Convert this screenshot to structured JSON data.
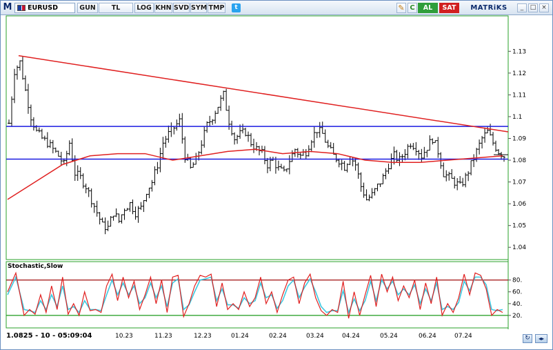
{
  "toolbar": {
    "logo": "M",
    "symbol": "EURUSD",
    "buttons": [
      {
        "label": "GUN",
        "name": "period-gun-button"
      },
      {
        "label": "TL",
        "name": "currency-tl-button"
      },
      {
        "label": "LOG",
        "name": "log-scale-button"
      },
      {
        "label": "KHN",
        "name": "khn-button"
      },
      {
        "label": "SVD",
        "name": "svd-button"
      },
      {
        "label": "SYM",
        "name": "sym-button"
      },
      {
        "label": "TMP",
        "name": "tmp-button"
      }
    ],
    "refresh_label": "C",
    "buy_label": "AL",
    "sell_label": "SAT",
    "brand": "MATRiKS",
    "twitter_icon": "twitter-icon",
    "pencil_icon": "pencil-icon",
    "window_buttons": [
      "minimize-icon",
      "restore-icon",
      "close-icon"
    ]
  },
  "chart_data": {
    "type": "candlestick",
    "symbol": "EURUSD",
    "price_panel": {
      "ylim": [
        1.035,
        1.145
      ],
      "yticks": [
        1.04,
        1.05,
        1.06,
        1.07,
        1.08,
        1.09,
        1.1,
        1.11,
        1.12,
        1.13
      ],
      "ytick_labels": [
        "1.04",
        "1.05",
        "1.06",
        "1.07",
        "1.08",
        "1.09",
        "1.1",
        "1.11",
        "1.12",
        "1.13"
      ],
      "close_path": [
        [
          0,
          1.097
        ],
        [
          2,
          1.121
        ],
        [
          4,
          1.125
        ],
        [
          6,
          1.112
        ],
        [
          8,
          1.1
        ],
        [
          10,
          1.093
        ],
        [
          12,
          1.09
        ],
        [
          14,
          1.088
        ],
        [
          16,
          1.085
        ],
        [
          18,
          1.082
        ],
        [
          20,
          1.078
        ],
        [
          22,
          1.088
        ],
        [
          24,
          1.074
        ],
        [
          26,
          1.072
        ],
        [
          28,
          1.068
        ],
        [
          30,
          1.062
        ],
        [
          32,
          1.056
        ],
        [
          34,
          1.05
        ],
        [
          36,
          1.049
        ],
        [
          38,
          1.056
        ],
        [
          40,
          1.052
        ],
        [
          42,
          1.058
        ],
        [
          44,
          1.06
        ],
        [
          46,
          1.056
        ],
        [
          48,
          1.058
        ],
        [
          50,
          1.066
        ],
        [
          52,
          1.07
        ],
        [
          54,
          1.078
        ],
        [
          56,
          1.088
        ],
        [
          58,
          1.092
        ],
        [
          60,
          1.095
        ],
        [
          62,
          1.098
        ],
        [
          64,
          1.082
        ],
        [
          66,
          1.076
        ],
        [
          68,
          1.08
        ],
        [
          70,
          1.088
        ],
        [
          72,
          1.096
        ],
        [
          74,
          1.1
        ],
        [
          76,
          1.105
        ],
        [
          78,
          1.11
        ],
        [
          80,
          1.098
        ],
        [
          82,
          1.09
        ],
        [
          84,
          1.092
        ],
        [
          86,
          1.093
        ],
        [
          88,
          1.088
        ],
        [
          90,
          1.085
        ],
        [
          92,
          1.083
        ],
        [
          94,
          1.078
        ],
        [
          96,
          1.08
        ],
        [
          98,
          1.076
        ],
        [
          100,
          1.074
        ],
        [
          102,
          1.08
        ],
        [
          104,
          1.085
        ],
        [
          106,
          1.082
        ],
        [
          108,
          1.084
        ],
        [
          110,
          1.09
        ],
        [
          112,
          1.094
        ],
        [
          114,
          1.092
        ],
        [
          116,
          1.086
        ],
        [
          118,
          1.082
        ],
        [
          120,
          1.08
        ],
        [
          122,
          1.077
        ],
        [
          124,
          1.082
        ],
        [
          126,
          1.078
        ],
        [
          128,
          1.068
        ],
        [
          130,
          1.062
        ],
        [
          132,
          1.064
        ],
        [
          134,
          1.068
        ],
        [
          136,
          1.072
        ],
        [
          138,
          1.078
        ],
        [
          140,
          1.082
        ],
        [
          142,
          1.08
        ],
        [
          144,
          1.084
        ],
        [
          146,
          1.088
        ],
        [
          148,
          1.086
        ],
        [
          150,
          1.082
        ],
        [
          152,
          1.086
        ],
        [
          154,
          1.09
        ],
        [
          156,
          1.084
        ],
        [
          158,
          1.074
        ],
        [
          160,
          1.072
        ],
        [
          162,
          1.07
        ],
        [
          164,
          1.068
        ],
        [
          166,
          1.072
        ],
        [
          168,
          1.078
        ],
        [
          170,
          1.084
        ],
        [
          172,
          1.09
        ],
        [
          174,
          1.093
        ],
        [
          176,
          1.088
        ],
        [
          178,
          1.084
        ],
        [
          180,
          1.082
        ]
      ],
      "moving_average": [
        [
          0,
          1.062
        ],
        [
          10,
          1.07
        ],
        [
          20,
          1.078
        ],
        [
          30,
          1.082
        ],
        [
          40,
          1.083
        ],
        [
          50,
          1.083
        ],
        [
          60,
          1.08
        ],
        [
          70,
          1.082
        ],
        [
          80,
          1.084
        ],
        [
          90,
          1.085
        ],
        [
          100,
          1.083
        ],
        [
          110,
          1.084
        ],
        [
          120,
          1.083
        ],
        [
          130,
          1.08
        ],
        [
          140,
          1.079
        ],
        [
          150,
          1.079
        ],
        [
          160,
          1.08
        ],
        [
          170,
          1.081
        ],
        [
          180,
          1.082
        ]
      ],
      "trendline": {
        "start": [
          4,
          1.128
        ],
        "end": [
          190,
          1.093
        ]
      },
      "horizontal_lines": [
        1.0955,
        1.0805
      ],
      "last_price": 1.0825
    },
    "stochastic": {
      "title": "Stochastic,Slow",
      "ylim": [
        0,
        100
      ],
      "yticks": [
        20,
        40,
        60,
        80
      ],
      "ytick_labels": [
        "20.",
        "40.",
        "60.",
        "80."
      ],
      "levels": [
        80,
        20
      ],
      "k": [
        [
          0,
          60
        ],
        [
          3,
          92
        ],
        [
          6,
          20
        ],
        [
          8,
          30
        ],
        [
          10,
          22
        ],
        [
          12,
          55
        ],
        [
          14,
          25
        ],
        [
          16,
          70
        ],
        [
          18,
          30
        ],
        [
          20,
          85
        ],
        [
          22,
          22
        ],
        [
          24,
          40
        ],
        [
          26,
          20
        ],
        [
          28,
          60
        ],
        [
          30,
          28
        ],
        [
          32,
          30
        ],
        [
          34,
          25
        ],
        [
          36,
          70
        ],
        [
          38,
          90
        ],
        [
          40,
          45
        ],
        [
          42,
          85
        ],
        [
          44,
          50
        ],
        [
          46,
          78
        ],
        [
          48,
          30
        ],
        [
          50,
          55
        ],
        [
          52,
          85
        ],
        [
          54,
          40
        ],
        [
          56,
          80
        ],
        [
          58,
          25
        ],
        [
          60,
          85
        ],
        [
          62,
          88
        ],
        [
          64,
          18
        ],
        [
          66,
          40
        ],
        [
          68,
          70
        ],
        [
          70,
          88
        ],
        [
          72,
          85
        ],
        [
          74,
          90
        ],
        [
          76,
          35
        ],
        [
          78,
          75
        ],
        [
          80,
          30
        ],
        [
          82,
          40
        ],
        [
          84,
          30
        ],
        [
          86,
          60
        ],
        [
          88,
          35
        ],
        [
          90,
          50
        ],
        [
          92,
          85
        ],
        [
          94,
          40
        ],
        [
          96,
          60
        ],
        [
          98,
          25
        ],
        [
          100,
          55
        ],
        [
          102,
          80
        ],
        [
          104,
          85
        ],
        [
          106,
          40
        ],
        [
          108,
          75
        ],
        [
          110,
          90
        ],
        [
          112,
          50
        ],
        [
          114,
          28
        ],
        [
          116,
          20
        ],
        [
          118,
          30
        ],
        [
          120,
          25
        ],
        [
          122,
          78
        ],
        [
          124,
          15
        ],
        [
          126,
          60
        ],
        [
          128,
          20
        ],
        [
          130,
          55
        ],
        [
          132,
          88
        ],
        [
          134,
          35
        ],
        [
          136,
          90
        ],
        [
          138,
          60
        ],
        [
          140,
          85
        ],
        [
          142,
          45
        ],
        [
          144,
          70
        ],
        [
          146,
          50
        ],
        [
          148,
          80
        ],
        [
          150,
          30
        ],
        [
          152,
          75
        ],
        [
          154,
          40
        ],
        [
          156,
          85
        ],
        [
          158,
          20
        ],
        [
          160,
          40
        ],
        [
          162,
          25
        ],
        [
          164,
          50
        ],
        [
          166,
          90
        ],
        [
          168,
          55
        ],
        [
          170,
          92
        ],
        [
          172,
          88
        ],
        [
          174,
          65
        ],
        [
          176,
          20
        ],
        [
          178,
          30
        ],
        [
          180,
          25
        ]
      ],
      "d": [
        [
          0,
          55
        ],
        [
          3,
          85
        ],
        [
          6,
          30
        ],
        [
          8,
          28
        ],
        [
          10,
          25
        ],
        [
          12,
          45
        ],
        [
          14,
          30
        ],
        [
          16,
          55
        ],
        [
          18,
          35
        ],
        [
          20,
          70
        ],
        [
          22,
          30
        ],
        [
          24,
          35
        ],
        [
          26,
          25
        ],
        [
          28,
          45
        ],
        [
          30,
          30
        ],
        [
          32,
          30
        ],
        [
          34,
          28
        ],
        [
          36,
          55
        ],
        [
          38,
          80
        ],
        [
          40,
          55
        ],
        [
          42,
          75
        ],
        [
          44,
          55
        ],
        [
          46,
          70
        ],
        [
          48,
          40
        ],
        [
          50,
          50
        ],
        [
          52,
          75
        ],
        [
          54,
          50
        ],
        [
          56,
          70
        ],
        [
          58,
          35
        ],
        [
          60,
          75
        ],
        [
          62,
          82
        ],
        [
          64,
          30
        ],
        [
          66,
          38
        ],
        [
          68,
          60
        ],
        [
          70,
          80
        ],
        [
          72,
          82
        ],
        [
          74,
          85
        ],
        [
          76,
          45
        ],
        [
          78,
          65
        ],
        [
          80,
          38
        ],
        [
          82,
          38
        ],
        [
          84,
          32
        ],
        [
          86,
          50
        ],
        [
          88,
          40
        ],
        [
          90,
          45
        ],
        [
          92,
          75
        ],
        [
          94,
          50
        ],
        [
          96,
          55
        ],
        [
          98,
          32
        ],
        [
          100,
          45
        ],
        [
          102,
          70
        ],
        [
          104,
          80
        ],
        [
          106,
          50
        ],
        [
          108,
          68
        ],
        [
          110,
          82
        ],
        [
          112,
          60
        ],
        [
          114,
          35
        ],
        [
          116,
          25
        ],
        [
          118,
          28
        ],
        [
          120,
          28
        ],
        [
          122,
          62
        ],
        [
          124,
          25
        ],
        [
          126,
          48
        ],
        [
          128,
          28
        ],
        [
          130,
          45
        ],
        [
          132,
          78
        ],
        [
          134,
          45
        ],
        [
          136,
          80
        ],
        [
          138,
          65
        ],
        [
          140,
          78
        ],
        [
          142,
          55
        ],
        [
          144,
          65
        ],
        [
          146,
          55
        ],
        [
          148,
          72
        ],
        [
          150,
          40
        ],
        [
          152,
          65
        ],
        [
          154,
          45
        ],
        [
          156,
          75
        ],
        [
          158,
          30
        ],
        [
          160,
          35
        ],
        [
          162,
          30
        ],
        [
          164,
          42
        ],
        [
          166,
          78
        ],
        [
          168,
          62
        ],
        [
          170,
          85
        ],
        [
          172,
          85
        ],
        [
          174,
          72
        ],
        [
          176,
          30
        ],
        [
          178,
          28
        ],
        [
          180,
          30
        ]
      ]
    },
    "x_labels": [
      "10.23",
      "11.23",
      "12.23",
      "01.24",
      "02.24",
      "03.24",
      "04.24",
      "05.24",
      "06.24",
      "07.24"
    ],
    "colors": {
      "candles": "#000000",
      "trendline": "#e02020",
      "moving_average": "#e02020",
      "horizontal_lines": "#1a1ae0",
      "stoch_k": "#e02020",
      "stoch_d": "#3cc8e0",
      "level_80": "#a01010",
      "level_20": "#1a9a1a",
      "panel_border": "#2aa02a"
    }
  },
  "statusbar": {
    "readout": "1.0825 - 10 - 05:09:04",
    "nav_icon": "refresh-icon",
    "nav_icon2": "navigation-icon"
  }
}
